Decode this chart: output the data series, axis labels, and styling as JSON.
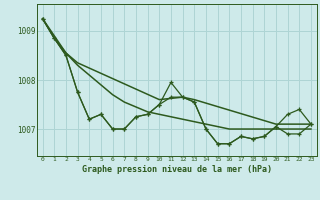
{
  "title": "Graphe pression niveau de la mer (hPa)",
  "bg_color": "#ceeaea",
  "grid_color": "#aed4d4",
  "line_color": "#2d5a1e",
  "ylabel_ticks": [
    1007,
    1008,
    1009
  ],
  "xlim": [
    -0.5,
    23.5
  ],
  "ylim": [
    1006.45,
    1009.55
  ],
  "xticks": [
    0,
    1,
    2,
    3,
    4,
    5,
    6,
    7,
    8,
    9,
    10,
    11,
    12,
    13,
    14,
    15,
    16,
    17,
    18,
    19,
    20,
    21,
    22,
    23
  ],
  "jagged1": [
    1009.25,
    1008.85,
    1008.5,
    1007.75,
    1007.2,
    1007.3,
    1007.0,
    1007.0,
    1007.25,
    1007.3,
    1007.5,
    1007.95,
    1007.65,
    1007.55,
    1007.0,
    1006.7,
    1006.7,
    1006.85,
    1006.8,
    1006.85,
    1007.05,
    1007.3,
    1007.4,
    1007.1
  ],
  "jagged2": [
    1009.25,
    1008.85,
    1008.5,
    1007.75,
    1007.2,
    1007.3,
    1007.0,
    1007.0,
    1007.25,
    1007.3,
    1007.5,
    1007.65,
    1007.65,
    1007.55,
    1007.0,
    1006.7,
    1006.7,
    1006.85,
    1006.8,
    1006.85,
    1007.05,
    1006.9,
    1006.9,
    1007.1
  ],
  "smooth1_x": [
    0,
    1,
    2,
    3,
    4,
    5,
    6,
    7,
    8,
    9,
    10,
    11,
    12,
    13,
    14,
    15,
    16,
    17,
    18,
    19,
    20,
    21,
    22,
    23
  ],
  "smooth1_y": [
    1009.25,
    1008.85,
    1008.55,
    1008.3,
    1008.1,
    1007.9,
    1007.7,
    1007.55,
    1007.45,
    1007.35,
    1007.3,
    1007.25,
    1007.2,
    1007.15,
    1007.1,
    1007.05,
    1007.0,
    1007.0,
    1007.0,
    1007.0,
    1007.0,
    1007.0,
    1007.0,
    1007.0
  ],
  "smooth2_x": [
    0,
    2,
    3,
    10,
    12,
    13,
    20,
    23
  ],
  "smooth2_y": [
    1009.25,
    1008.55,
    1008.35,
    1007.6,
    1007.65,
    1007.6,
    1007.1,
    1007.1
  ]
}
